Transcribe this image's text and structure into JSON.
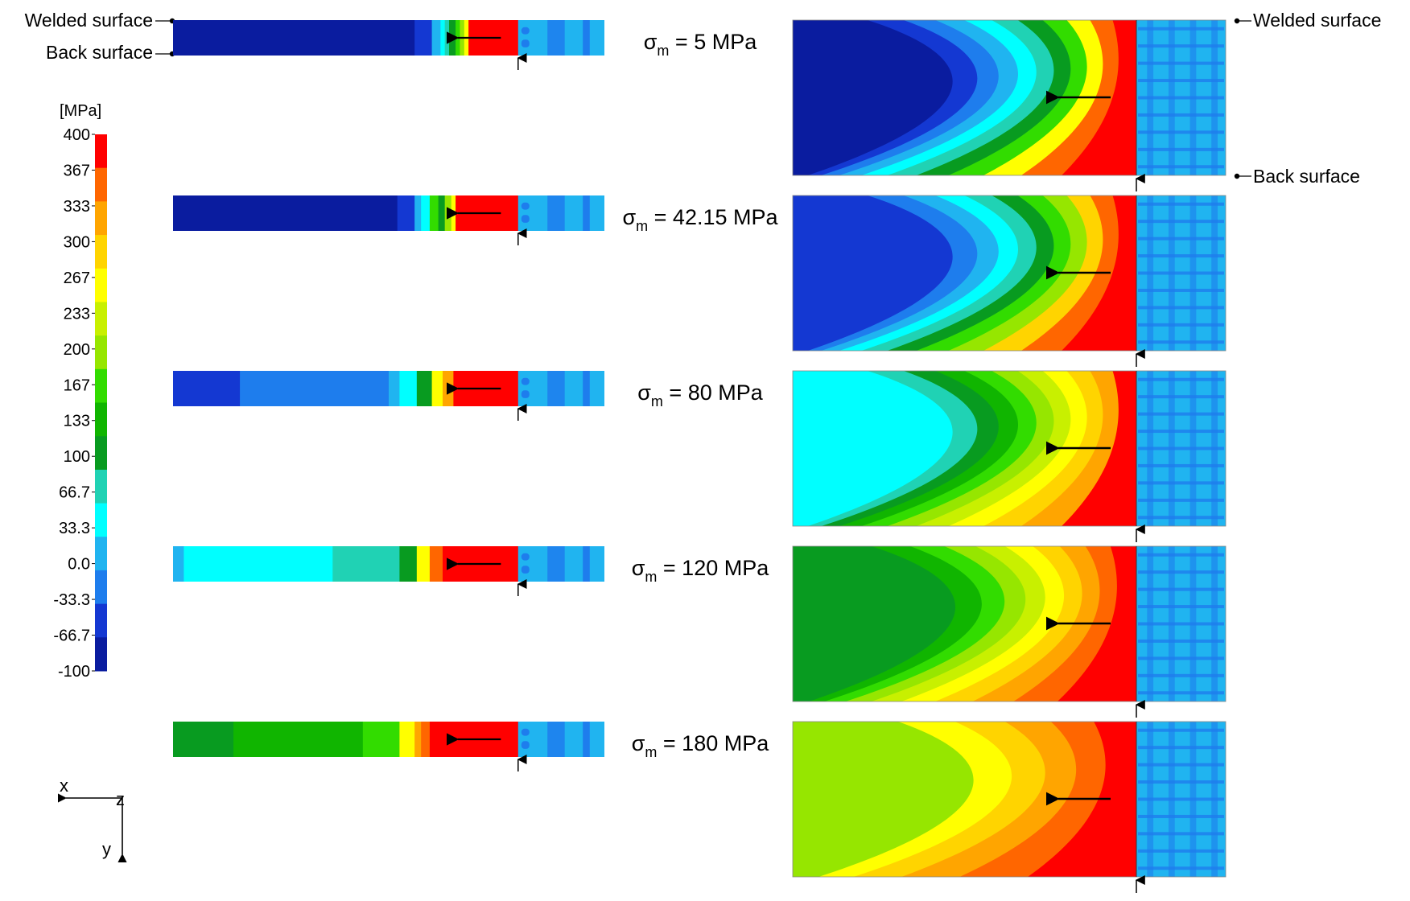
{
  "surface_labels": {
    "welded": "Welded surface",
    "back": "Back surface"
  },
  "colorbar": {
    "unit": "[MPa]",
    "ticks": [
      "400",
      "367",
      "333",
      "300",
      "267",
      "233",
      "200",
      "167",
      "133",
      "100",
      "66.7",
      "33.3",
      "0.0",
      "-33.3",
      "-66.7",
      "-100"
    ],
    "colors": [
      "#ff0000",
      "#ff6600",
      "#ffa500",
      "#ffd400",
      "#ffff00",
      "#c8f000",
      "#96e600",
      "#32dc00",
      "#10b500",
      "#089b20",
      "#20d2b4",
      "#00ffff",
      "#20b4f0",
      "#1e7ded",
      "#1438d2",
      "#0a1c9f"
    ]
  },
  "axes_triad": {
    "x": "x",
    "y": "y",
    "z": "z"
  },
  "cases": [
    {
      "sigma_symbol": "σ",
      "sigma_sub": "m",
      "value_text": " = 5 MPa",
      "strip_bands": [
        [
          "#0a1c9f",
          0.56
        ],
        [
          "#1438d2",
          0.6
        ],
        [
          "#20b4f0",
          0.62
        ],
        [
          "#00ffff",
          0.63
        ],
        [
          "#20d2b4",
          0.64
        ],
        [
          "#089b20",
          0.655
        ],
        [
          "#32dc00",
          0.665
        ],
        [
          "#96e600",
          0.675
        ],
        [
          "#ffff00",
          0.685
        ],
        [
          "#ff0000",
          0.8
        ]
      ],
      "section_bands": [
        "#0a1c9f",
        "#1438d2",
        "#1e7ded",
        "#20b4f0",
        "#00ffff",
        "#20d2b4",
        "#089b20",
        "#32dc00",
        "#ffff00",
        "#ff6600",
        "#ff0000"
      ]
    },
    {
      "sigma_symbol": "σ",
      "sigma_sub": "m",
      "value_text": " = 42.15 MPa",
      "strip_bands": [
        [
          "#0a1c9f",
          0.52
        ],
        [
          "#1438d2",
          0.56
        ],
        [
          "#20b4f0",
          0.575
        ],
        [
          "#00ffff",
          0.595
        ],
        [
          "#32dc00",
          0.615
        ],
        [
          "#089b20",
          0.63
        ],
        [
          "#96e600",
          0.645
        ],
        [
          "#ffff00",
          0.655
        ],
        [
          "#ff0000",
          0.8
        ]
      ],
      "section_bands": [
        "#1438d2",
        "#1e7ded",
        "#20b4f0",
        "#00ffff",
        "#20d2b4",
        "#089b20",
        "#32dc00",
        "#96e600",
        "#ffd400",
        "#ff6600",
        "#ff0000"
      ]
    },
    {
      "sigma_symbol": "σ",
      "sigma_sub": "m",
      "value_text": " = 80 MPa",
      "strip_bands": [
        [
          "#1438d2",
          0.155
        ],
        [
          "#1e7ded",
          0.5
        ],
        [
          "#20b4f0",
          0.525
        ],
        [
          "#00ffff",
          0.565
        ],
        [
          "#089b20",
          0.6
        ],
        [
          "#ffff00",
          0.625
        ],
        [
          "#ffa500",
          0.65
        ],
        [
          "#ff0000",
          0.8
        ]
      ],
      "section_bands": [
        "#00ffff",
        "#20d2b4",
        "#089b20",
        "#10b500",
        "#32dc00",
        "#96e600",
        "#c8f000",
        "#ffff00",
        "#ffd400",
        "#ffa500",
        "#ff0000"
      ]
    },
    {
      "sigma_symbol": "σ",
      "sigma_sub": "m",
      "value_text": " = 120 MPa",
      "strip_bands": [
        [
          "#20b4f0",
          0.025
        ],
        [
          "#00ffff",
          0.37
        ],
        [
          "#20d2b4",
          0.525
        ],
        [
          "#089b20",
          0.565
        ],
        [
          "#ffff00",
          0.595
        ],
        [
          "#ff6600",
          0.625
        ],
        [
          "#ff0000",
          0.8
        ]
      ],
      "section_bands": [
        "#089b20",
        "#10b500",
        "#32dc00",
        "#96e600",
        "#c8f000",
        "#ffff00",
        "#ffd400",
        "#ffa500",
        "#ff6600",
        "#ff0000"
      ]
    },
    {
      "sigma_symbol": "σ",
      "sigma_sub": "m",
      "value_text": " = 180 MPa",
      "strip_bands": [
        [
          "#089b20",
          0.14
        ],
        [
          "#10b500",
          0.44
        ],
        [
          "#32dc00",
          0.525
        ],
        [
          "#ffff00",
          0.56
        ],
        [
          "#ffa500",
          0.575
        ],
        [
          "#ff6600",
          0.595
        ],
        [
          "#ff0000",
          0.8
        ]
      ],
      "section_bands": [
        "#96e600",
        "#ffff00",
        "#ffd400",
        "#ffa500",
        "#ff6600",
        "#ff0000"
      ]
    }
  ]
}
